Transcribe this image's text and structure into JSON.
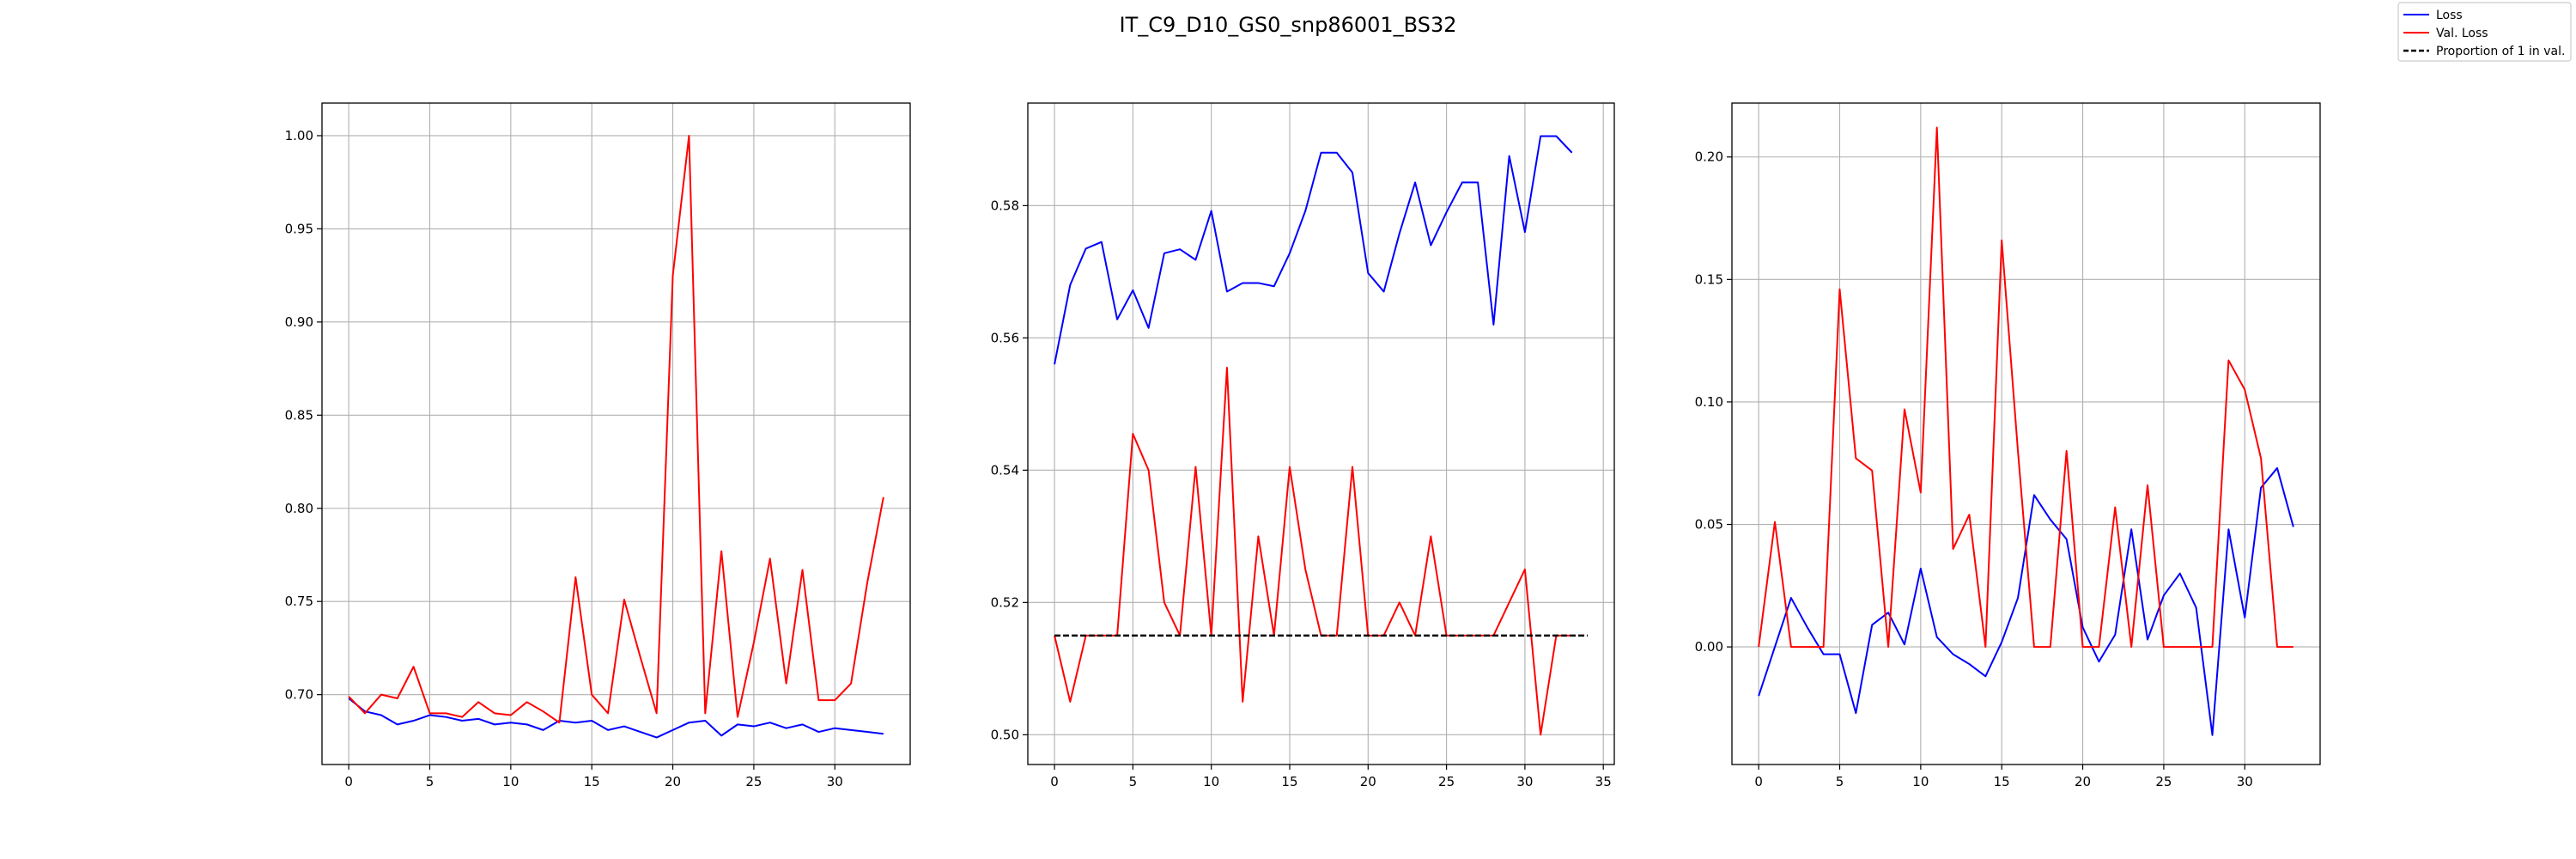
{
  "figure": {
    "title": "IT_C9_D10_GS0_snp86001_BS32"
  },
  "legend": {
    "placement": "top-right",
    "entries": [
      {
        "label": "Loss",
        "color": "#0000ff",
        "style": "solid"
      },
      {
        "label": "Val. Loss",
        "color": "#ff0000",
        "style": "solid"
      },
      {
        "label": "Proportion of 1 in val.",
        "color": "#000000",
        "style": "dashed"
      }
    ]
  },
  "chart_data": [
    {
      "type": "line",
      "grid": true,
      "xlim": [
        -1.65,
        34.65
      ],
      "ylim": [
        0.6625,
        1.0175
      ],
      "xticks": [
        0,
        5,
        10,
        15,
        20,
        25,
        30
      ],
      "yticks": [
        0.7,
        0.75,
        0.8,
        0.85,
        0.9,
        0.95,
        1.0
      ],
      "ytick_decimals": 2,
      "series": [
        {
          "name": "Loss",
          "color": "#0000ff",
          "style": "solid",
          "values": [
            0.698,
            0.691,
            0.689,
            0.684,
            0.686,
            0.689,
            0.688,
            0.686,
            0.687,
            0.684,
            0.685,
            0.684,
            0.681,
            0.686,
            0.685,
            0.686,
            0.681,
            0.683,
            0.68,
            0.677,
            0.681,
            0.685,
            0.686,
            0.678,
            0.684,
            0.683,
            0.685,
            0.682,
            0.684,
            0.68,
            0.682,
            0.681,
            0.68,
            0.679
          ]
        },
        {
          "name": "Val. Loss",
          "color": "#ff0000",
          "style": "solid",
          "values": [
            0.699,
            0.69,
            0.7,
            0.698,
            0.715,
            0.69,
            0.69,
            0.688,
            0.696,
            0.69,
            0.689,
            0.696,
            0.691,
            0.685,
            0.763,
            0.7,
            0.69,
            0.751,
            0.72,
            0.69,
            0.925,
            1.0,
            0.69,
            0.777,
            0.688,
            0.728,
            0.773,
            0.706,
            0.767,
            0.697,
            0.697,
            0.706,
            0.76,
            0.806
          ]
        }
      ]
    },
    {
      "type": "line",
      "grid": true,
      "xlim": [
        -1.7,
        35.7
      ],
      "ylim": [
        0.4955,
        0.5955
      ],
      "xticks": [
        0,
        5,
        10,
        15,
        20,
        25,
        30,
        35
      ],
      "yticks": [
        0.5,
        0.52,
        0.54,
        0.56,
        0.58
      ],
      "ytick_decimals": 2,
      "series": [
        {
          "name": "Loss",
          "color": "#0000ff",
          "style": "solid",
          "values": [
            0.556,
            0.568,
            0.5735,
            0.5745,
            0.5628,
            0.5672,
            0.5615,
            0.5728,
            0.5734,
            0.5718,
            0.5792,
            0.567,
            0.5683,
            0.5683,
            0.5678,
            0.5728,
            0.5792,
            0.588,
            0.588,
            0.585,
            0.5698,
            0.567,
            0.5758,
            0.5835,
            0.574,
            0.579,
            0.5835,
            0.5835,
            0.562,
            0.5875,
            0.576,
            0.5905,
            0.5905,
            0.588
          ]
        },
        {
          "name": "Val. Loss",
          "color": "#ff0000",
          "style": "solid",
          "values": [
            0.515,
            0.505,
            0.515,
            0.515,
            0.515,
            0.5455,
            0.54,
            0.52,
            0.515,
            0.5405,
            0.515,
            0.5555,
            0.505,
            0.53,
            0.515,
            0.5405,
            0.525,
            0.515,
            0.515,
            0.5405,
            0.515,
            0.515,
            0.52,
            0.515,
            0.53,
            0.515,
            0.515,
            0.515,
            0.515,
            0.52,
            0.525,
            0.5,
            0.515,
            0.515
          ]
        },
        {
          "name": "Proportion of 1 in val.",
          "color": "#000000",
          "style": "dashed",
          "x": [
            0,
            34
          ],
          "values": [
            0.515,
            0.515
          ]
        }
      ]
    },
    {
      "type": "line",
      "grid": true,
      "xlim": [
        -1.65,
        34.65
      ],
      "ylim": [
        -0.048,
        0.222
      ],
      "xticks": [
        0,
        5,
        10,
        15,
        20,
        25,
        30
      ],
      "yticks": [
        0.0,
        0.05,
        0.1,
        0.15,
        0.2
      ],
      "ytick_decimals": 2,
      "series": [
        {
          "name": "Loss",
          "color": "#0000ff",
          "style": "solid",
          "values": [
            -0.02,
            0.0,
            0.02,
            0.008,
            -0.003,
            -0.003,
            -0.027,
            0.009,
            0.014,
            0.001,
            0.032,
            0.004,
            -0.003,
            -0.007,
            -0.012,
            0.002,
            0.02,
            0.062,
            0.052,
            0.044,
            0.008,
            -0.006,
            0.005,
            0.048,
            0.003,
            0.021,
            0.03,
            0.016,
            -0.036,
            0.048,
            0.012,
            0.065,
            0.073,
            0.049
          ]
        },
        {
          "name": "Val. Loss",
          "color": "#ff0000",
          "style": "solid",
          "values": [
            0.0,
            0.051,
            0.0,
            0.0,
            0.0,
            0.146,
            0.077,
            0.072,
            0.0,
            0.097,
            0.063,
            0.212,
            0.04,
            0.054,
            0.0,
            0.166,
            0.08,
            0.0,
            0.0,
            0.08,
            0.0,
            0.0,
            0.057,
            0.0,
            0.066,
            0.0,
            0.0,
            0.0,
            0.0,
            0.117,
            0.105,
            0.077,
            0.0,
            0.0
          ]
        }
      ]
    }
  ]
}
